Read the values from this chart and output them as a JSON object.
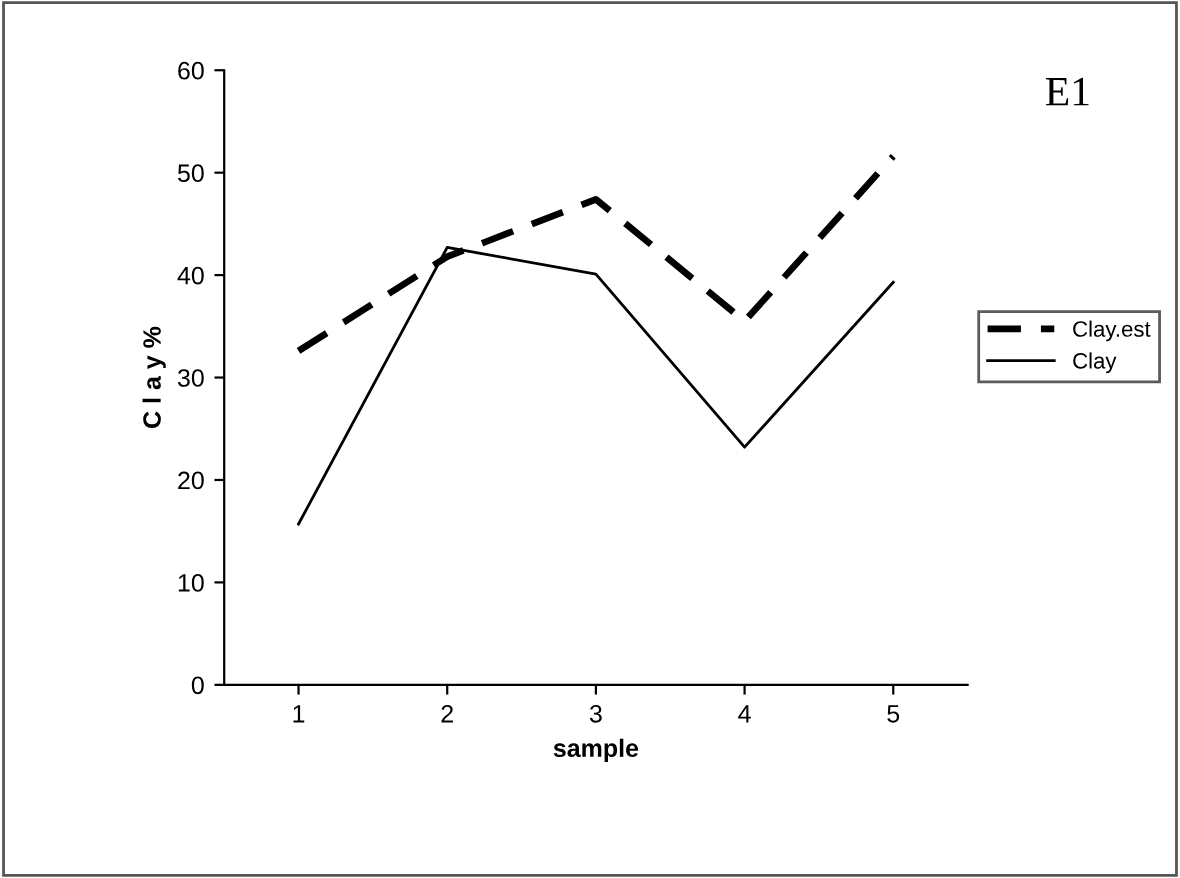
{
  "chart_data": {
    "type": "line",
    "annotations": [
      "E1"
    ],
    "xlabel": "sample",
    "ylabel": "C l a y %",
    "categories": [
      "1",
      "2",
      "3",
      "4",
      "5"
    ],
    "series": [
      {
        "name": "Clay.est",
        "color": "#000000",
        "line_style": "dashed",
        "values": [
          32.6,
          41.8,
          47.4,
          35.5,
          51.6
        ]
      },
      {
        "name": "Clay",
        "color": "#000000",
        "line_style": "solid",
        "values": [
          15.7,
          42.7,
          40.1,
          23.2,
          39.3
        ]
      }
    ],
    "ylim": [
      0,
      60
    ],
    "yticks": [
      0,
      10,
      20,
      30,
      40,
      50,
      60
    ],
    "grid": false,
    "legend": "right"
  }
}
